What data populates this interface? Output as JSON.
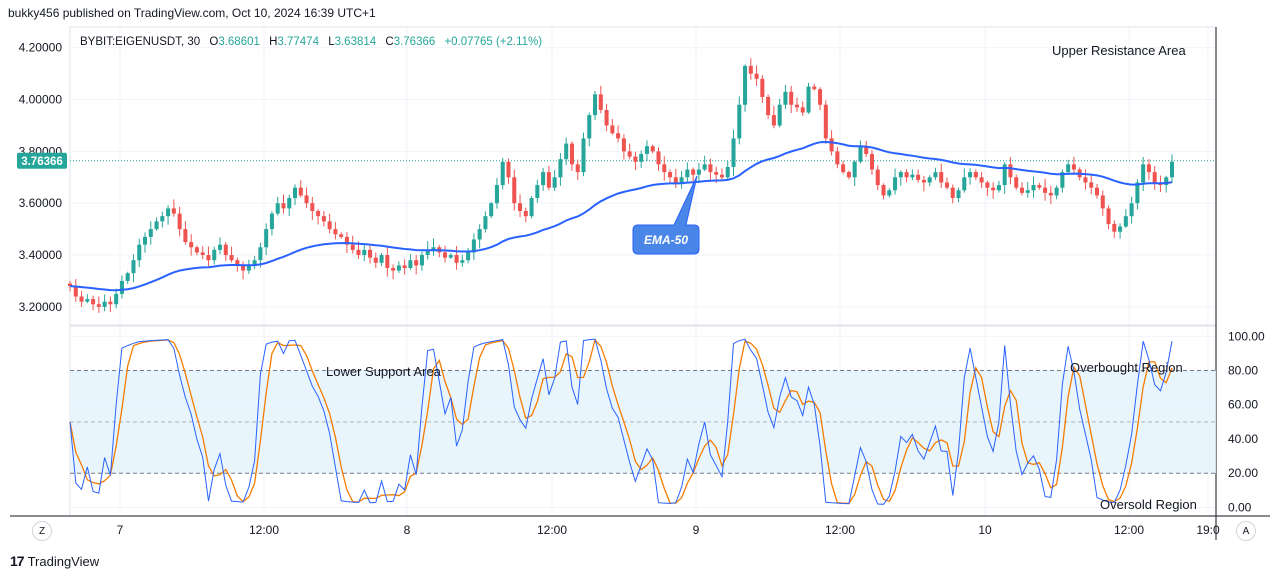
{
  "header": {
    "publisher": "bukky456 published on TradingView.com, Oct 10, 2024 16:39 UTC+1"
  },
  "footer": {
    "brand": "TradingView",
    "left_button": "Z",
    "right_button": "A"
  },
  "colors": {
    "up": "#26a69a",
    "down": "#ef5350",
    "ema": "#2962ff",
    "stoch_k": "#2962ff",
    "stoch_d": "#f57c00",
    "band_fill": "#e3f2fd",
    "grid": "#f0f3fa",
    "axis": "#131722"
  },
  "chart_data": [
    {
      "type": "candlestick",
      "symbol": "BYBIT:EIGENUSDT, 30",
      "ohlc": {
        "o_label": "O",
        "o": "3.68601",
        "h_label": "H",
        "h": "3.77474",
        "l_label": "L",
        "l": "3.63814",
        "c_label": "C",
        "c": "3.76366",
        "change": "+0.07765 (+2.11%)"
      },
      "last_price": "3.76366",
      "last_price_value": 3.76366,
      "ylim": [
        3.13,
        4.28
      ],
      "yticks": [
        "4.20000",
        "4.00000",
        "3.80000",
        "3.60000",
        "3.40000",
        "3.20000"
      ],
      "ytick_values": [
        4.2,
        4.0,
        3.8,
        3.6,
        3.4,
        3.2
      ],
      "xticks": [
        "7",
        "12:00",
        "8",
        "12:00",
        "9",
        "12:00",
        "10",
        "12:00",
        "19:0"
      ],
      "annotations": [
        "Upper Resistance Area",
        "EMA-50"
      ],
      "closes": [
        3.28,
        3.24,
        3.22,
        3.23,
        3.21,
        3.2,
        3.22,
        3.21,
        3.25,
        3.3,
        3.33,
        3.38,
        3.44,
        3.47,
        3.5,
        3.53,
        3.55,
        3.58,
        3.56,
        3.5,
        3.45,
        3.43,
        3.41,
        3.4,
        3.38,
        3.42,
        3.44,
        3.4,
        3.38,
        3.36,
        3.34,
        3.36,
        3.38,
        3.43,
        3.5,
        3.56,
        3.6,
        3.58,
        3.62,
        3.66,
        3.63,
        3.6,
        3.57,
        3.55,
        3.53,
        3.5,
        3.48,
        3.47,
        3.44,
        3.42,
        3.4,
        3.42,
        3.39,
        3.37,
        3.4,
        3.35,
        3.34,
        3.36,
        3.35,
        3.38,
        3.36,
        3.4,
        3.42,
        3.43,
        3.41,
        3.39,
        3.4,
        3.37,
        3.38,
        3.41,
        3.46,
        3.5,
        3.55,
        3.6,
        3.67,
        3.76,
        3.7,
        3.6,
        3.57,
        3.55,
        3.62,
        3.67,
        3.72,
        3.66,
        3.7,
        3.77,
        3.83,
        3.75,
        3.72,
        3.85,
        3.94,
        4.02,
        3.96,
        3.9,
        3.87,
        3.85,
        3.8,
        3.78,
        3.76,
        3.79,
        3.82,
        3.8,
        3.75,
        3.72,
        3.7,
        3.68,
        3.7,
        3.73,
        3.71,
        3.73,
        3.75,
        3.72,
        3.71,
        3.7,
        3.74,
        3.85,
        3.98,
        4.13,
        4.1,
        4.08,
        4.01,
        3.94,
        3.9,
        3.98,
        4.03,
        3.98,
        3.97,
        3.95,
        4.05,
        4.04,
        3.98,
        3.85,
        3.8,
        3.75,
        3.72,
        3.7,
        3.76,
        3.82,
        3.79,
        3.73,
        3.67,
        3.63,
        3.65,
        3.7,
        3.72,
        3.7,
        3.71,
        3.69,
        3.68,
        3.7,
        3.72,
        3.68,
        3.66,
        3.62,
        3.65,
        3.7,
        3.72,
        3.7,
        3.68,
        3.66,
        3.65,
        3.67,
        3.75,
        3.7,
        3.66,
        3.64,
        3.65,
        3.67,
        3.66,
        3.64,
        3.63,
        3.66,
        3.72,
        3.75,
        3.73,
        3.7,
        3.68,
        3.66,
        3.63,
        3.58,
        3.52,
        3.49,
        3.51,
        3.55,
        3.6,
        3.68,
        3.75,
        3.72,
        3.68,
        3.67,
        3.7,
        3.76
      ]
    },
    {
      "type": "line",
      "indicator": "stochastic",
      "ylim": [
        -5,
        106
      ],
      "yticks": [
        "100.00",
        "80.00",
        "60.00",
        "40.00",
        "20.00",
        "0.00"
      ],
      "ytick_values": [
        100,
        80,
        60,
        40,
        20,
        0
      ],
      "band": [
        20,
        80
      ],
      "midline": 50,
      "annotations": [
        "Lower Support Area",
        "Overbought Region",
        "Oversold Region"
      ]
    }
  ]
}
